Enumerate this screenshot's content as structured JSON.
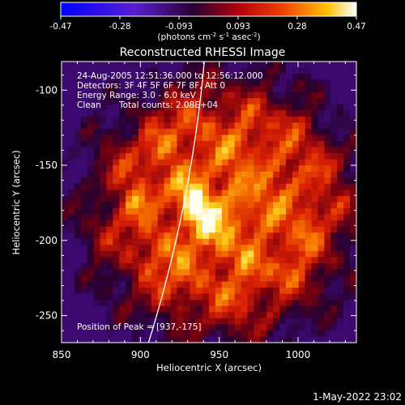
{
  "chart_data": {
    "type": "heatmap",
    "title": "Reconstructed RHESSI Image",
    "xlabel": "Heliocentric X (arcsec)",
    "ylabel": "Heliocentric Y (arcsec)",
    "xlim": [
      850,
      1037
    ],
    "ylim": [
      -268,
      -81
    ],
    "xticks": [
      850,
      900,
      950,
      1000
    ],
    "yticks": [
      -100,
      -150,
      -200,
      -250
    ],
    "colorbar": {
      "ticks": [
        "-0.47",
        "-0.28",
        "-0.093",
        "0.093",
        "0.28",
        "0.47"
      ],
      "range": [
        -0.47,
        0.47
      ],
      "label_main": "(photons cm",
      "label_sup1": "-2",
      "label_mid1": " s",
      "label_sup2": "-1",
      "label_mid2": " asec",
      "label_sup3": "-2",
      "label_end": ")"
    },
    "annotations": {
      "time_range": "24-Aug-2005 12:51:36.000 to 12:56:12.000",
      "detectors": "Detectors: 3F 4F 5F 6F 7F 8F, Att 0",
      "energy": "Energy Range: 3.0 - 6.0 keV",
      "method": "Clean",
      "counts": "Total counts: 2.08E+04",
      "peak": "Position of Peak = [937,-175]"
    },
    "peak": [
      937,
      -175
    ],
    "limb": {
      "cx": 0,
      "cy": 0,
      "r": 944
    },
    "grid": false,
    "colormap": "fire (blue-purple-red-yellow-white)"
  },
  "footer": {
    "date": "1-May-2022 23:02"
  }
}
